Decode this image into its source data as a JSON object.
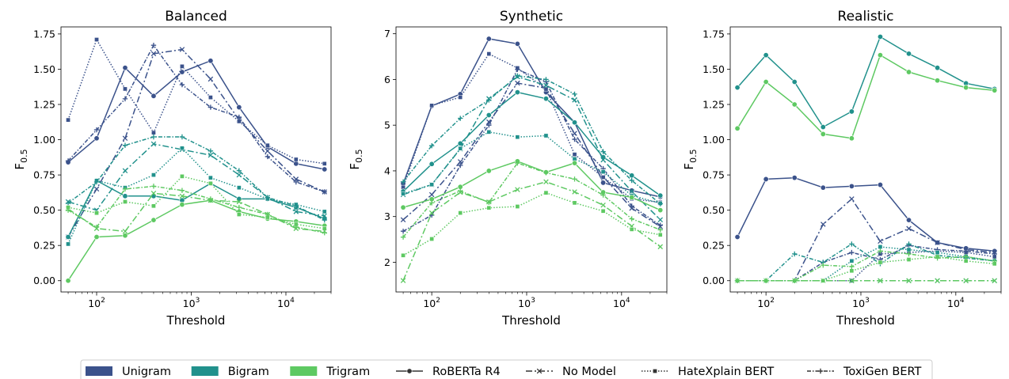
{
  "colors": {
    "Unigram": "#3b528b",
    "Bigram": "#21918c",
    "Trigram": "#5ec962"
  },
  "chart_data": [
    {
      "type": "line",
      "title": "Balanced",
      "xlabel": "Threshold",
      "ylabel": "F",
      "ylabel_sub": "0.5",
      "xscale": "log",
      "xlim": [
        42,
        30000
      ],
      "ylim": [
        -0.08,
        1.8
      ],
      "yticks": [
        0.0,
        0.25,
        0.5,
        0.75,
        1.0,
        1.25,
        1.5,
        1.75
      ],
      "ytick_labels": [
        "0.00",
        "0.25",
        "0.50",
        "0.75",
        "1.00",
        "1.25",
        "1.50",
        "1.75"
      ],
      "xticks": [
        100,
        1000,
        10000
      ],
      "xtick_labels": [
        "10",
        "10",
        "10"
      ],
      "xtick_exponents": [
        "2",
        "3",
        "4"
      ],
      "x": [
        50,
        100,
        200,
        400,
        800,
        1600,
        3200,
        6400,
        12800,
        25600
      ],
      "series": [
        {
          "ngram": "Unigram",
          "model": "RoBERTa R4",
          "values": [
            0.84,
            1.01,
            1.51,
            1.31,
            1.48,
            1.56,
            1.23,
            0.95,
            0.83,
            0.79
          ]
        },
        {
          "ngram": "Unigram",
          "model": "No Model",
          "values": [
            0.31,
            0.65,
            1.01,
            1.61,
            1.64,
            1.43,
            1.14,
            0.92,
            0.72,
            0.63
          ]
        },
        {
          "ngram": "Unigram",
          "model": "HateXplain BERT",
          "values": [
            1.14,
            1.71,
            1.36,
            1.05,
            1.52,
            1.3,
            1.13,
            0.96,
            0.86,
            0.83
          ]
        },
        {
          "ngram": "Unigram",
          "model": "ToxiGen BERT",
          "values": [
            0.85,
            1.07,
            1.29,
            1.67,
            1.39,
            1.23,
            1.16,
            0.88,
            0.7,
            0.63
          ]
        },
        {
          "ngram": "Bigram",
          "model": "RoBERTa R4",
          "values": [
            0.31,
            0.71,
            0.6,
            0.6,
            0.57,
            0.69,
            0.58,
            0.58,
            0.52,
            0.44
          ]
        },
        {
          "ngram": "Bigram",
          "model": "No Model",
          "values": [
            0.56,
            0.5,
            0.78,
            0.97,
            0.93,
            0.89,
            0.75,
            0.59,
            0.49,
            0.46
          ]
        },
        {
          "ngram": "Bigram",
          "model": "HateXplain BERT",
          "values": [
            0.26,
            0.71,
            0.66,
            0.75,
            0.94,
            0.73,
            0.66,
            0.58,
            0.54,
            0.49
          ]
        },
        {
          "ngram": "Bigram",
          "model": "ToxiGen BERT",
          "values": [
            0.55,
            0.7,
            0.96,
            1.02,
            1.02,
            0.92,
            0.78,
            0.59,
            0.53,
            0.43
          ]
        },
        {
          "ngram": "Trigram",
          "model": "RoBERTa R4",
          "values": [
            0.0,
            0.31,
            0.32,
            0.43,
            0.54,
            0.57,
            0.49,
            0.44,
            0.42,
            0.39
          ]
        },
        {
          "ngram": "Trigram",
          "model": "No Model",
          "values": [
            0.51,
            0.37,
            0.35,
            0.62,
            0.6,
            0.57,
            0.56,
            0.47,
            0.37,
            0.35
          ]
        },
        {
          "ngram": "Trigram",
          "model": "HateXplain BERT",
          "values": [
            0.52,
            0.48,
            0.56,
            0.53,
            0.74,
            0.69,
            0.47,
            0.45,
            0.4,
            0.37
          ]
        },
        {
          "ngram": "Trigram",
          "model": "ToxiGen BERT",
          "values": [
            0.5,
            0.38,
            0.65,
            0.67,
            0.64,
            0.58,
            0.52,
            0.47,
            0.38,
            0.34
          ]
        }
      ]
    },
    {
      "type": "line",
      "title": "Synthetic",
      "xlabel": "Threshold",
      "ylabel": "F",
      "ylabel_sub": "0.5",
      "xscale": "log",
      "xlim": [
        42,
        30000
      ],
      "ylim": [
        1.35,
        7.15
      ],
      "yticks": [
        2,
        3,
        4,
        5,
        6,
        7
      ],
      "ytick_labels": [
        "2",
        "3",
        "4",
        "5",
        "6",
        "7"
      ],
      "xticks": [
        100,
        1000,
        10000
      ],
      "xtick_labels": [
        "10",
        "10",
        "10"
      ],
      "xtick_exponents": [
        "2",
        "3",
        "4"
      ],
      "x": [
        50,
        100,
        200,
        400,
        800,
        1600,
        3200,
        6400,
        12800,
        25600
      ],
      "series": [
        {
          "ngram": "Unigram",
          "model": "RoBERTa R4",
          "values": [
            3.72,
            5.42,
            5.68,
            6.89,
            6.78,
            5.72,
            5.06,
            3.74,
            3.57,
            3.43
          ]
        },
        {
          "ngram": "Unigram",
          "model": "No Model",
          "values": [
            2.93,
            3.48,
            4.2,
            5.07,
            5.92,
            5.81,
            4.82,
            3.87,
            3.18,
            2.78
          ]
        },
        {
          "ngram": "Unigram",
          "model": "HateXplain BERT",
          "values": [
            3.64,
            5.43,
            5.61,
            6.56,
            6.25,
            5.79,
            4.36,
            3.86,
            3.39,
            3.31
          ]
        },
        {
          "ngram": "Unigram",
          "model": "ToxiGen BERT",
          "values": [
            2.68,
            3.03,
            4.12,
            5.0,
            6.22,
            5.95,
            4.69,
            4.05,
            3.23,
            2.81
          ]
        },
        {
          "ngram": "Bigram",
          "model": "RoBERTa R4",
          "values": [
            3.55,
            4.15,
            4.6,
            5.22,
            5.72,
            5.58,
            5.06,
            4.3,
            3.9,
            3.46
          ]
        },
        {
          "ngram": "Bigram",
          "model": "No Model",
          "values": [
            3.48,
            3.7,
            4.48,
            5.58,
            6.06,
            5.87,
            5.55,
            4.24,
            3.55,
            2.93
          ]
        },
        {
          "ngram": "Bigram",
          "model": "HateXplain BERT",
          "values": [
            3.5,
            3.7,
            4.49,
            4.85,
            4.74,
            4.77,
            4.26,
            3.98,
            3.46,
            3.29
          ]
        },
        {
          "ngram": "Bigram",
          "model": "ToxiGen BERT",
          "values": [
            3.76,
            4.55,
            5.15,
            5.55,
            6.08,
            6.0,
            5.68,
            4.42,
            3.79,
            3.28
          ]
        },
        {
          "ngram": "Trigram",
          "model": "RoBERTa R4",
          "values": [
            3.2,
            3.38,
            3.65,
            4.0,
            4.21,
            3.97,
            4.17,
            3.53,
            3.42,
            3.14
          ]
        },
        {
          "ngram": "Trigram",
          "model": "No Model",
          "values": [
            1.6,
            3.08,
            3.53,
            3.32,
            3.59,
            3.76,
            3.54,
            3.25,
            2.79,
            2.34
          ]
        },
        {
          "ngram": "Trigram",
          "model": "HateXplain BERT",
          "values": [
            2.15,
            2.51,
            3.08,
            3.19,
            3.22,
            3.52,
            3.3,
            3.12,
            2.72,
            2.6
          ]
        },
        {
          "ngram": "Trigram",
          "model": "ToxiGen BERT",
          "values": [
            2.55,
            3.3,
            3.56,
            3.31,
            4.17,
            3.96,
            3.82,
            3.47,
            2.95,
            2.71
          ]
        }
      ]
    },
    {
      "type": "line",
      "title": "Realistic",
      "xlabel": "Threshold",
      "ylabel": "F",
      "ylabel_sub": "0.5",
      "xscale": "log",
      "xlim": [
        42,
        30000
      ],
      "ylim": [
        -0.08,
        1.8
      ],
      "yticks": [
        0.0,
        0.25,
        0.5,
        0.75,
        1.0,
        1.25,
        1.5,
        1.75
      ],
      "ytick_labels": [
        "0.00",
        "0.25",
        "0.50",
        "0.75",
        "1.00",
        "1.25",
        "1.50",
        "1.75"
      ],
      "xticks": [
        100,
        1000,
        10000
      ],
      "xtick_labels": [
        "10",
        "10",
        "10"
      ],
      "xtick_exponents": [
        "2",
        "3",
        "4"
      ],
      "x": [
        50,
        100,
        200,
        400,
        800,
        1600,
        3200,
        6400,
        12800,
        25600
      ],
      "series": [
        {
          "ngram": "Unigram",
          "model": "RoBERTa R4",
          "values": [
            0.31,
            0.72,
            0.73,
            0.66,
            0.67,
            0.68,
            0.43,
            0.27,
            0.23,
            0.21
          ]
        },
        {
          "ngram": "Unigram",
          "model": "No Model",
          "values": [
            0.0,
            0.0,
            0.0,
            0.4,
            0.58,
            0.28,
            0.37,
            0.27,
            0.22,
            0.2
          ]
        },
        {
          "ngram": "Unigram",
          "model": "HateXplain BERT",
          "values": [
            0.0,
            0.0,
            0.0,
            0.0,
            0.0,
            0.19,
            0.2,
            0.21,
            0.2,
            0.17
          ]
        },
        {
          "ngram": "Unigram",
          "model": "ToxiGen BERT",
          "values": [
            0.0,
            0.0,
            0.0,
            0.13,
            0.2,
            0.15,
            0.25,
            0.22,
            0.21,
            0.19
          ]
        },
        {
          "ngram": "Bigram",
          "model": "RoBERTa R4",
          "values": [
            1.37,
            1.6,
            1.41,
            1.09,
            1.2,
            1.73,
            1.61,
            1.51,
            1.4,
            1.36
          ]
        },
        {
          "ngram": "Bigram",
          "model": "No Model",
          "values": [
            0.0,
            0.0,
            0.0,
            0.0,
            0.0,
            0.0,
            0.0,
            0.0,
            0.0,
            0.0
          ]
        },
        {
          "ngram": "Bigram",
          "model": "HateXplain BERT",
          "values": [
            0.0,
            0.0,
            0.0,
            0.0,
            0.14,
            0.24,
            0.22,
            0.2,
            0.17,
            0.14
          ]
        },
        {
          "ngram": "Bigram",
          "model": "ToxiGen BERT",
          "values": [
            0.0,
            0.0,
            0.19,
            0.13,
            0.26,
            0.12,
            0.26,
            0.18,
            0.16,
            0.14
          ]
        },
        {
          "ngram": "Trigram",
          "model": "RoBERTa R4",
          "values": [
            1.08,
            1.41,
            1.25,
            1.04,
            1.01,
            1.6,
            1.48,
            1.42,
            1.37,
            1.35
          ]
        },
        {
          "ngram": "Trigram",
          "model": "No Model",
          "values": [
            0.0,
            0.0,
            0.0,
            0.0,
            0.0,
            0.0,
            0.0,
            0.0,
            0.0,
            0.0
          ]
        },
        {
          "ngram": "Trigram",
          "model": "HateXplain BERT",
          "values": [
            0.0,
            0.0,
            0.0,
            0.0,
            0.07,
            0.13,
            0.15,
            0.17,
            0.14,
            0.12
          ]
        },
        {
          "ngram": "Trigram",
          "model": "ToxiGen BERT",
          "values": [
            0.0,
            0.0,
            0.0,
            0.11,
            0.1,
            0.21,
            0.19,
            0.16,
            0.17,
            0.14
          ]
        }
      ]
    }
  ],
  "legend": {
    "ngrams": [
      "Unigram",
      "Bigram",
      "Trigram"
    ],
    "models": [
      "RoBERTa R4",
      "No Model",
      "HateXplain BERT",
      "ToxiGen BERT"
    ]
  }
}
